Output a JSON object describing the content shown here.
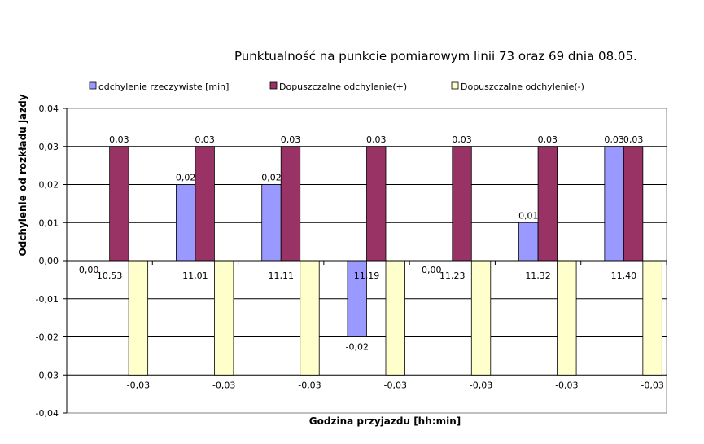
{
  "chart_data": {
    "type": "bar",
    "title": "Punktualność na punkcie pomiarowym linii 73 oraz 69 dnia 08.05.",
    "xlabel": "Godzina przyjazdu [hh:min]",
    "ylabel": "Odchylenie od rozkładu jazdy",
    "categories": [
      "10,53",
      "11,01",
      "11,11",
      "11,19",
      "11,23",
      "11,32",
      "11,40"
    ],
    "ylim": [
      -0.04,
      0.04
    ],
    "yticks": [
      "0,04",
      "0,03",
      "0,02",
      "0,01",
      "0,00",
      "-0,01",
      "-0,02",
      "-0,03",
      "-0,04"
    ],
    "grid": true,
    "legend_position": "top",
    "series": [
      {
        "name": "odchylenie rzeczywiste [min]",
        "color": "#9999ff",
        "values": [
          0.0,
          0.02,
          0.02,
          -0.02,
          0.0,
          0.01,
          0.03
        ],
        "labels": [
          "0,00",
          "0,02",
          "0,02",
          "-0,02",
          "0,00",
          "0,01",
          "0,03"
        ]
      },
      {
        "name": "Dopuszczalne odchylenie(+)",
        "color": "#993366",
        "values": [
          0.03,
          0.03,
          0.03,
          0.03,
          0.03,
          0.03,
          0.03
        ],
        "labels": [
          "0,03",
          "0,03",
          "0,03",
          "0,03",
          "0,03",
          "0,03",
          "0,03"
        ]
      },
      {
        "name": "Dopuszczalne odchylenie(-)",
        "color": "#ffffcc",
        "values": [
          -0.03,
          -0.03,
          -0.03,
          -0.03,
          -0.03,
          -0.03,
          -0.03
        ],
        "labels": [
          "-0,03",
          "-0,03",
          "-0,03",
          "-0,03",
          "-0,03",
          "-0,03",
          "-0,03"
        ]
      }
    ]
  }
}
